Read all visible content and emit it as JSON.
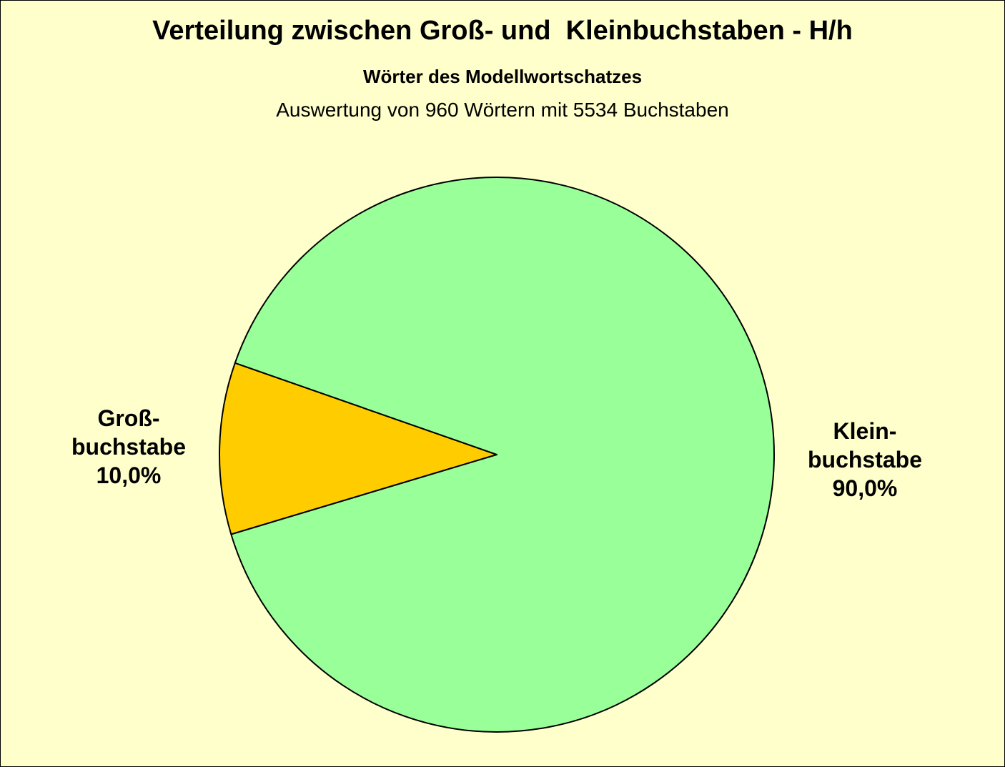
{
  "chart_data": {
    "type": "pie",
    "title": "Verteilung zwischen Groß- und  Kleinbuchstaben - H/h",
    "subtitle": "Wörter des Modellwortschatzes",
    "note": "Auswertung von 960 Wörtern mit 5534 Buchstaben",
    "slices": [
      {
        "label_lines": [
          "Groß-",
          "buchstabe"
        ],
        "value": 10.0,
        "value_label": "10,0%",
        "color": "#FFCC00"
      },
      {
        "label_lines": [
          "Klein-",
          "buchstabe"
        ],
        "value": 90.0,
        "value_label": "90,0%",
        "color": "#99FF99"
      }
    ],
    "background": "#FFFFCC",
    "legend": "none"
  }
}
